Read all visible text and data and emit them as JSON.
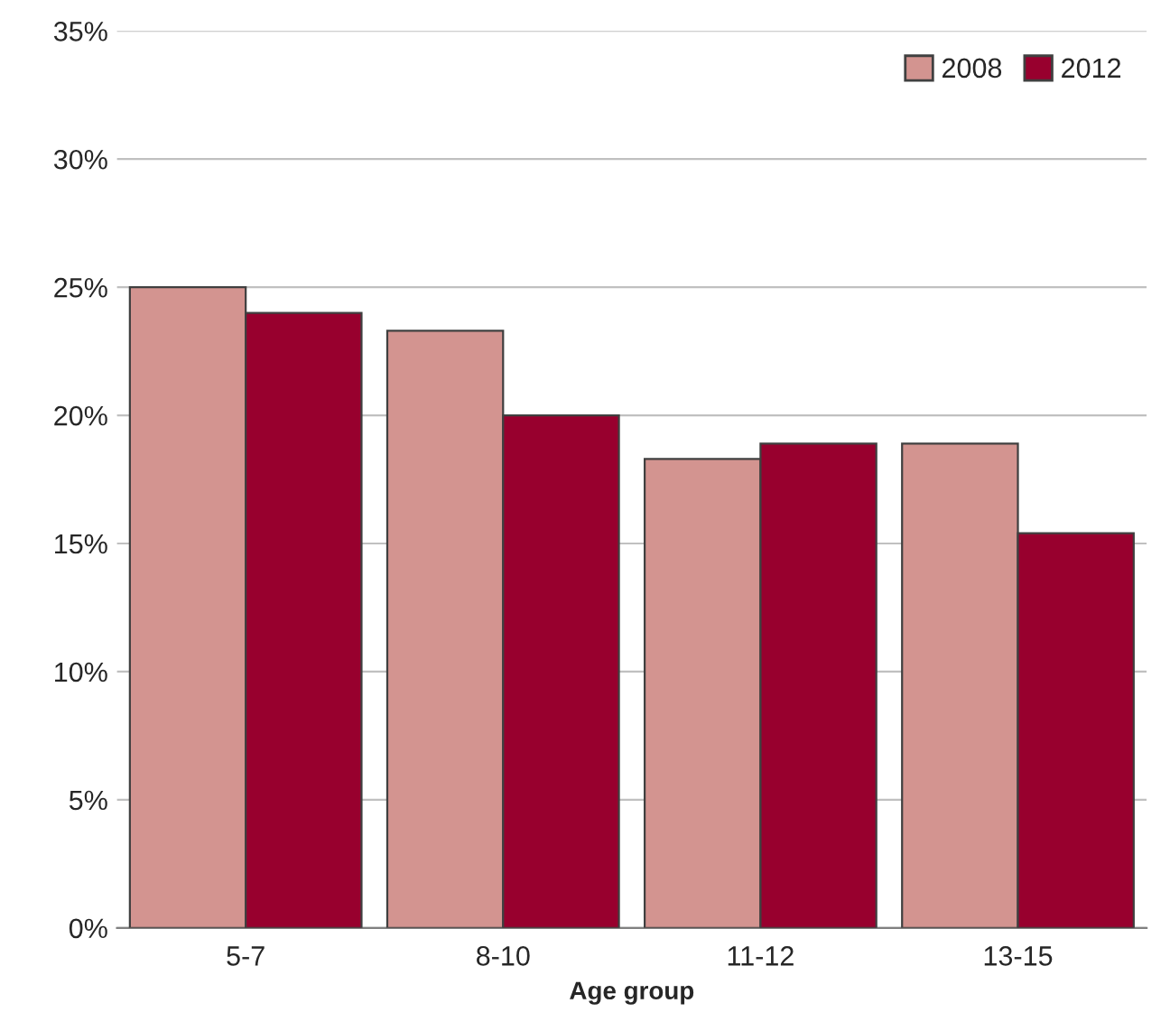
{
  "chart_data": {
    "type": "bar",
    "xlabel": "Age group",
    "categories": [
      "5-7",
      "8-10",
      "11-12",
      "13-15"
    ],
    "series": [
      {
        "name": "2008",
        "color": "#d39490",
        "values": [
          25,
          23.3,
          18.3,
          18.9
        ]
      },
      {
        "name": "2012",
        "color": "#98002e",
        "values": [
          24,
          20,
          18.9,
          15.4
        ]
      }
    ],
    "ylim": [
      0,
      35
    ],
    "yticks": [
      {
        "value": 0,
        "label": "0%"
      },
      {
        "value": 5,
        "label": "5%"
      },
      {
        "value": 10,
        "label": "10%"
      },
      {
        "value": 15,
        "label": "15%"
      },
      {
        "value": 20,
        "label": "20%"
      },
      {
        "value": 25,
        "label": "25%"
      },
      {
        "value": 30,
        "label": "30%"
      },
      {
        "value": 35,
        "label": "35%"
      }
    ],
    "grid": "y",
    "legend": "top right"
  }
}
